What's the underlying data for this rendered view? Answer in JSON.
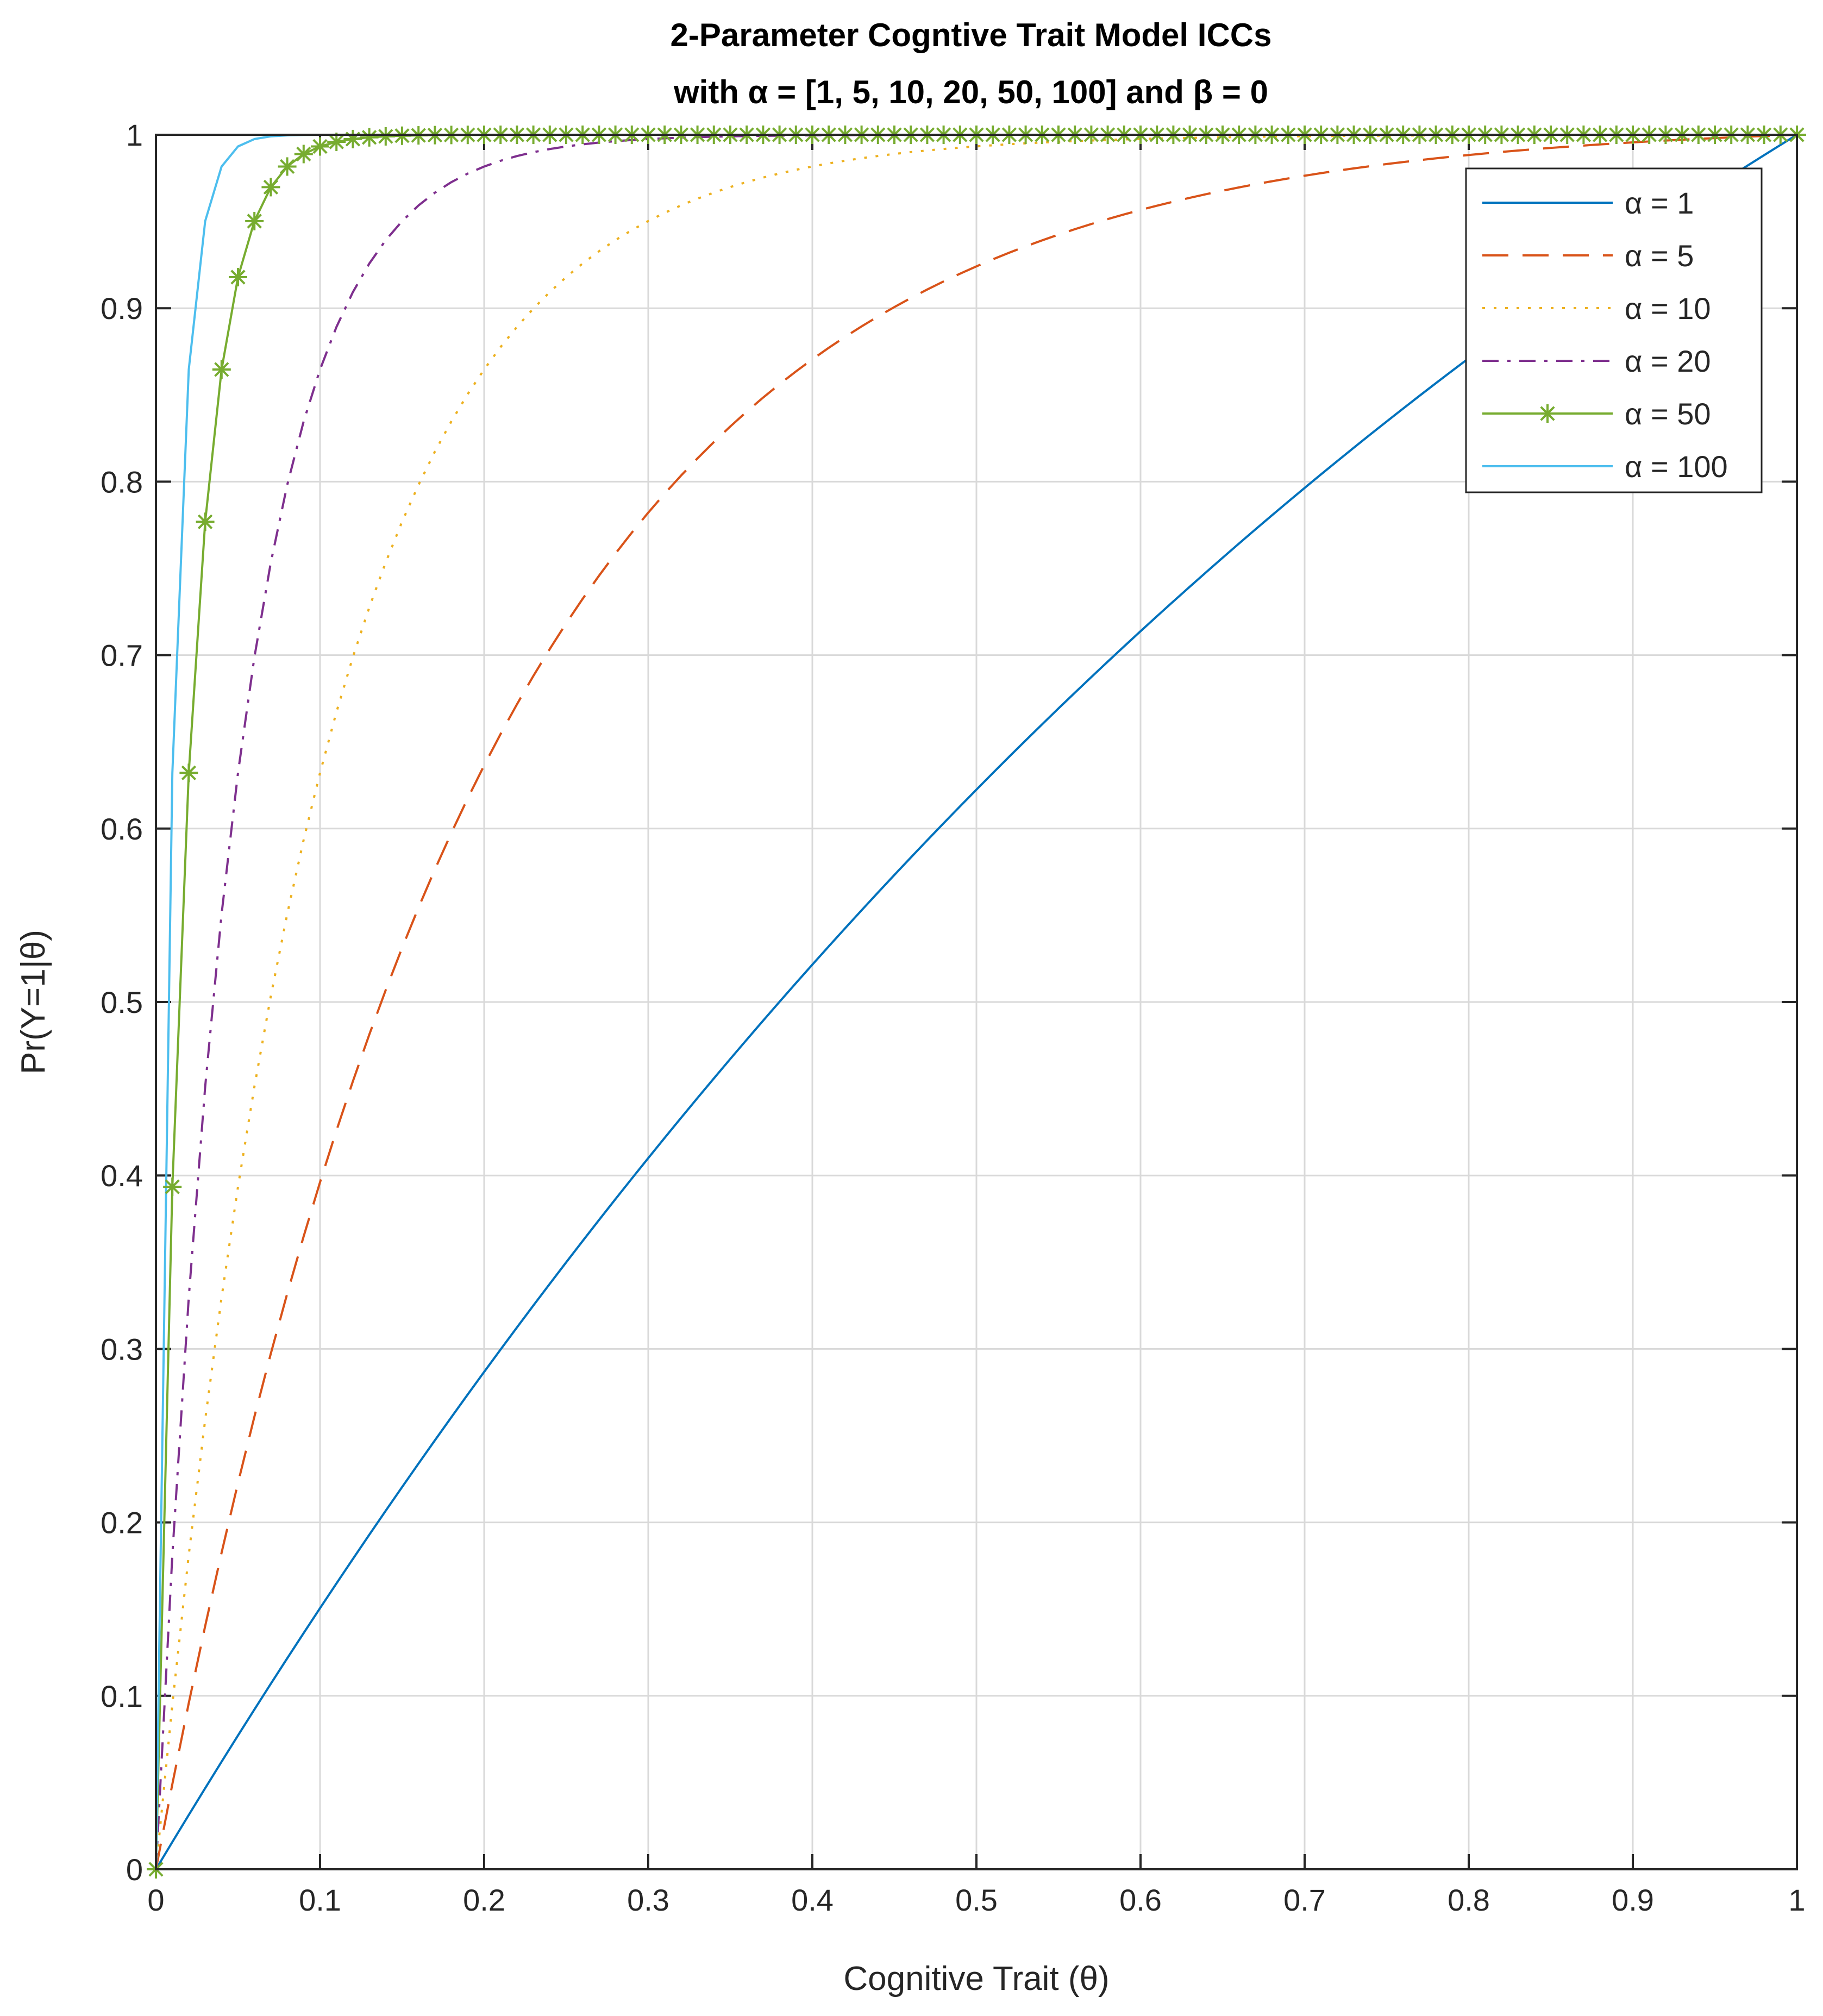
{
  "chart_data": {
    "type": "line",
    "title_lines": [
      "2-Parameter Cogntive Trait Model ICCs",
      "with α = [1, 5, 10, 20, 50, 100] and β = 0"
    ],
    "xlabel": "Cognitive Trait (θ)",
    "ylabel": "Pr(Y=1|θ)",
    "xlim": [
      0,
      1
    ],
    "ylim": [
      0,
      1
    ],
    "xticks": [
      "0",
      "0.1",
      "0.2",
      "0.3",
      "0.4",
      "0.5",
      "0.6",
      "0.7",
      "0.8",
      "0.9",
      "1"
    ],
    "yticks": [
      "0",
      "0.1",
      "0.2",
      "0.3",
      "0.4",
      "0.5",
      "0.6",
      "0.7",
      "0.8",
      "0.9",
      "1"
    ],
    "grid": true,
    "legend_position": "top-right",
    "curve": "Pr = (1 - exp(-alpha*theta)) / (1 - exp(-alpha)), sampled at theta = 0:0.01:1",
    "series": [
      {
        "name": "α = 1",
        "alpha": 1,
        "color": "#0072BD",
        "style": "solid",
        "marker": "none"
      },
      {
        "name": "α = 5",
        "alpha": 5,
        "color": "#D95319",
        "style": "dashed",
        "marker": "none"
      },
      {
        "name": "α = 10",
        "alpha": 10,
        "color": "#EDB120",
        "style": "dotted",
        "marker": "none"
      },
      {
        "name": "α = 20",
        "alpha": 20,
        "color": "#7E2F8E",
        "style": "dashdot",
        "marker": "none"
      },
      {
        "name": "α = 50",
        "alpha": 50,
        "color": "#77AC30",
        "style": "solid",
        "marker": "asterisk"
      },
      {
        "name": "α = 100",
        "alpha": 100,
        "color": "#4DBEEE",
        "style": "solid",
        "marker": "none"
      }
    ]
  }
}
